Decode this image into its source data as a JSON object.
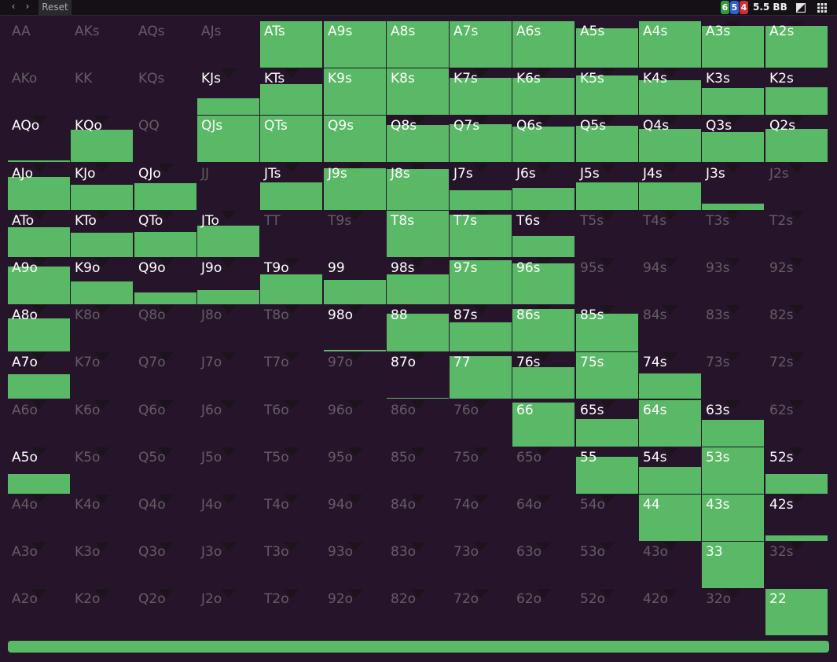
{
  "toolbar": {
    "prev_label": "‹",
    "next_label": "›",
    "reset_label": "Reset",
    "badges": [
      {
        "value": "6",
        "color": "#2f9d3e"
      },
      {
        "value": "5",
        "color": "#2e5fd3"
      },
      {
        "value": "4",
        "color": "#d12f2f"
      }
    ],
    "stack_label": "5.5 BB",
    "icons": [
      "contrast-icon",
      "grid-icon"
    ]
  },
  "colors": {
    "background": "#26152a",
    "fill": "#5ab966",
    "text": "#ffffff",
    "text_dim": "#655c66"
  },
  "grid": {
    "rows": [
      [
        "AA",
        "AKs",
        "AQs",
        "AJs",
        "ATs",
        "A9s",
        "A8s",
        "A7s",
        "A6s",
        "A5s",
        "A4s",
        "A3s",
        "A2s"
      ],
      [
        "AKo",
        "KK",
        "KQs",
        "KJs",
        "KTs",
        "K9s",
        "K8s",
        "K7s",
        "K6s",
        "K5s",
        "K4s",
        "K3s",
        "K2s"
      ],
      [
        "AQo",
        "KQo",
        "QQ",
        "QJs",
        "QTs",
        "Q9s",
        "Q8s",
        "Q7s",
        "Q6s",
        "Q5s",
        "Q4s",
        "Q3s",
        "Q2s"
      ],
      [
        "AJo",
        "KJo",
        "QJo",
        "JJ",
        "JTs",
        "J9s",
        "J8s",
        "J7s",
        "J6s",
        "J5s",
        "J4s",
        "J3s",
        "J2s"
      ],
      [
        "ATo",
        "KTo",
        "QTo",
        "JTo",
        "TT",
        "T9s",
        "T8s",
        "T7s",
        "T6s",
        "T5s",
        "T4s",
        "T3s",
        "T2s"
      ],
      [
        "A9o",
        "K9o",
        "Q9o",
        "J9o",
        "T9o",
        "99",
        "98s",
        "97s",
        "96s",
        "95s",
        "94s",
        "93s",
        "92s"
      ],
      [
        "A8o",
        "K8o",
        "Q8o",
        "J8o",
        "T8o",
        "98o",
        "88",
        "87s",
        "86s",
        "85s",
        "84s",
        "83s",
        "82s"
      ],
      [
        "A7o",
        "K7o",
        "Q7o",
        "J7o",
        "T7o",
        "97o",
        "87o",
        "77",
        "76s",
        "75s",
        "74s",
        "73s",
        "72s"
      ],
      [
        "A6o",
        "K6o",
        "Q6o",
        "J6o",
        "T6o",
        "96o",
        "86o",
        "76o",
        "66",
        "65s",
        "64s",
        "63s",
        "62s"
      ],
      [
        "A5o",
        "K5o",
        "Q5o",
        "J5o",
        "T5o",
        "95o",
        "85o",
        "75o",
        "65o",
        "55",
        "54s",
        "53s",
        "52s"
      ],
      [
        "A4o",
        "K4o",
        "Q4o",
        "J4o",
        "T4o",
        "94o",
        "84o",
        "74o",
        "64o",
        "54o",
        "44",
        "43s",
        "42s"
      ],
      [
        "A3o",
        "K3o",
        "Q3o",
        "J3o",
        "T3o",
        "93o",
        "83o",
        "73o",
        "63o",
        "53o",
        "43o",
        "33",
        "32s"
      ],
      [
        "A2o",
        "K2o",
        "Q2o",
        "J2o",
        "T2o",
        "92o",
        "82o",
        "72o",
        "62o",
        "52o",
        "42o",
        "32o",
        "22"
      ]
    ],
    "frequencies": [
      [
        0,
        0,
        0,
        0,
        1,
        1,
        1,
        1,
        1,
        0.85,
        1,
        0.9,
        0.9
      ],
      [
        0,
        0,
        0,
        0.36,
        0.66,
        1,
        1,
        0.8,
        0.8,
        0.85,
        0.75,
        0.57,
        0.6
      ],
      [
        0.04,
        0.7,
        0,
        1,
        1,
        1,
        0.8,
        0.82,
        0.76,
        0.78,
        0.72,
        0.65,
        0.72
      ],
      [
        0.72,
        0.54,
        0.57,
        0,
        0.6,
        0.9,
        0.88,
        0.42,
        0.48,
        0.6,
        0.6,
        0.13,
        0
      ],
      [
        0.65,
        0.52,
        0.55,
        0.68,
        0,
        0,
        1,
        0.92,
        0.45,
        0,
        0,
        0,
        0
      ],
      [
        0.82,
        0.5,
        0.25,
        0.3,
        0.65,
        0.52,
        0.65,
        0.95,
        0.88,
        0,
        0,
        0,
        0
      ],
      [
        0.72,
        0,
        0,
        0,
        0,
        0.04,
        0.82,
        0.62,
        0.92,
        0.82,
        0,
        0,
        0
      ],
      [
        0.52,
        0,
        0,
        0,
        0,
        0,
        0.02,
        0.92,
        0.68,
        1,
        0.55,
        0,
        0
      ],
      [
        0,
        0,
        0,
        0,
        0,
        0,
        0,
        0,
        0.95,
        0.6,
        1,
        0.58,
        0
      ],
      [
        0.42,
        0,
        0,
        0,
        0,
        0,
        0,
        0,
        0,
        0.8,
        0.57,
        1,
        0.42
      ],
      [
        0,
        0,
        0,
        0,
        0,
        0,
        0,
        0,
        0,
        0,
        1,
        1,
        0.12
      ],
      [
        0,
        0,
        0,
        0,
        0,
        0,
        0,
        0,
        0,
        0,
        0,
        1,
        0
      ],
      [
        0,
        0,
        0,
        0,
        0,
        0,
        0,
        0,
        0,
        0,
        0,
        0,
        1
      ]
    ],
    "no_marker": [
      "AA",
      "AKs",
      "AQs",
      "AJs",
      "AKo",
      "KK",
      "KQs",
      "QQ",
      "JJ",
      "TT",
      "99",
      "88",
      "77",
      "66",
      "55",
      "44",
      "33",
      "22",
      "A9s",
      "A5s",
      "K3s",
      "K2s"
    ]
  },
  "footer": {
    "overall_frequency": 1
  }
}
